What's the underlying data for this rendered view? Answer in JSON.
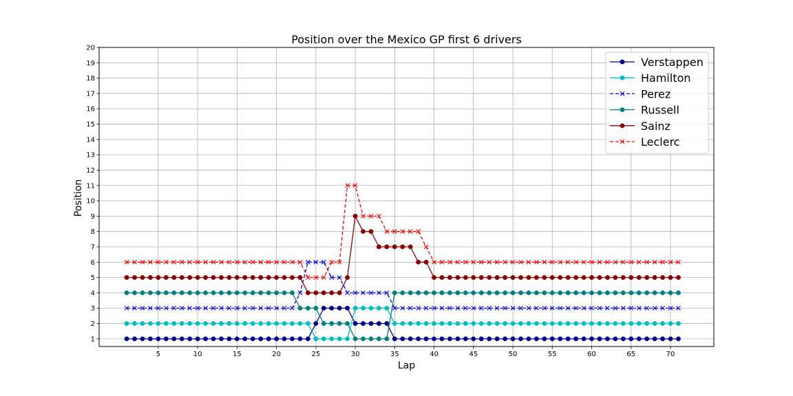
{
  "chart_data": {
    "type": "line",
    "title": "Position over the Mexico GP first 6 drivers",
    "xlabel": "Lap",
    "ylabel": "Position",
    "xlim": [
      -2.5,
      75.5
    ],
    "ylim": [
      0.5,
      20
    ],
    "xticks": [
      5,
      10,
      15,
      20,
      25,
      30,
      35,
      40,
      45,
      50,
      55,
      60,
      65,
      70
    ],
    "yticks": [
      1,
      2,
      3,
      4,
      5,
      6,
      7,
      8,
      9,
      10,
      11,
      12,
      13,
      14,
      15,
      16,
      17,
      18,
      19,
      20
    ],
    "grid": true,
    "legend_position": "top-right",
    "series": [
      {
        "name": "Verstappen",
        "color": "#00008b",
        "marker": "circle",
        "linestyle": "solid",
        "segments": [
          [
            1,
            24,
            1
          ],
          [
            25,
            25,
            2
          ],
          [
            26,
            29,
            3
          ],
          [
            30,
            34,
            2
          ],
          [
            35,
            71,
            1
          ]
        ]
      },
      {
        "name": "Hamilton",
        "color": "#00bfbf",
        "marker": "circle",
        "linestyle": "solid",
        "segments": [
          [
            1,
            24,
            2
          ],
          [
            25,
            29,
            1
          ],
          [
            30,
            34,
            3
          ],
          [
            35,
            71,
            2
          ]
        ]
      },
      {
        "name": "Perez",
        "color": "#0000ff",
        "marker": "x",
        "linestyle": "dashed",
        "segments": [
          [
            1,
            22,
            3
          ],
          [
            23,
            23,
            4
          ],
          [
            24,
            26,
            6
          ],
          [
            27,
            28,
            5
          ],
          [
            29,
            34,
            4
          ],
          [
            35,
            71,
            3
          ]
        ]
      },
      {
        "name": "Russell",
        "color": "#008080",
        "marker": "circle",
        "linestyle": "solid",
        "segments": [
          [
            1,
            22,
            4
          ],
          [
            23,
            25,
            3
          ],
          [
            26,
            29,
            2
          ],
          [
            30,
            34,
            1
          ],
          [
            35,
            71,
            4
          ]
        ]
      },
      {
        "name": "Sainz",
        "color": "#8b0000",
        "marker": "circle",
        "linestyle": "solid",
        "segments": [
          [
            1,
            23,
            5
          ],
          [
            24,
            28,
            4
          ],
          [
            29,
            29,
            5
          ],
          [
            30,
            30,
            9
          ],
          [
            31,
            32,
            8
          ],
          [
            33,
            37,
            7
          ],
          [
            38,
            39,
            6
          ],
          [
            40,
            71,
            5
          ]
        ]
      },
      {
        "name": "Leclerc",
        "color": "#ff0000",
        "marker": "x",
        "linestyle": "dashed",
        "segments": [
          [
            1,
            23,
            6
          ],
          [
            24,
            26,
            5
          ],
          [
            27,
            28,
            6
          ],
          [
            29,
            30,
            11
          ],
          [
            31,
            33,
            9
          ],
          [
            34,
            38,
            8
          ],
          [
            39,
            39,
            7
          ],
          [
            40,
            71,
            6
          ]
        ]
      }
    ]
  }
}
